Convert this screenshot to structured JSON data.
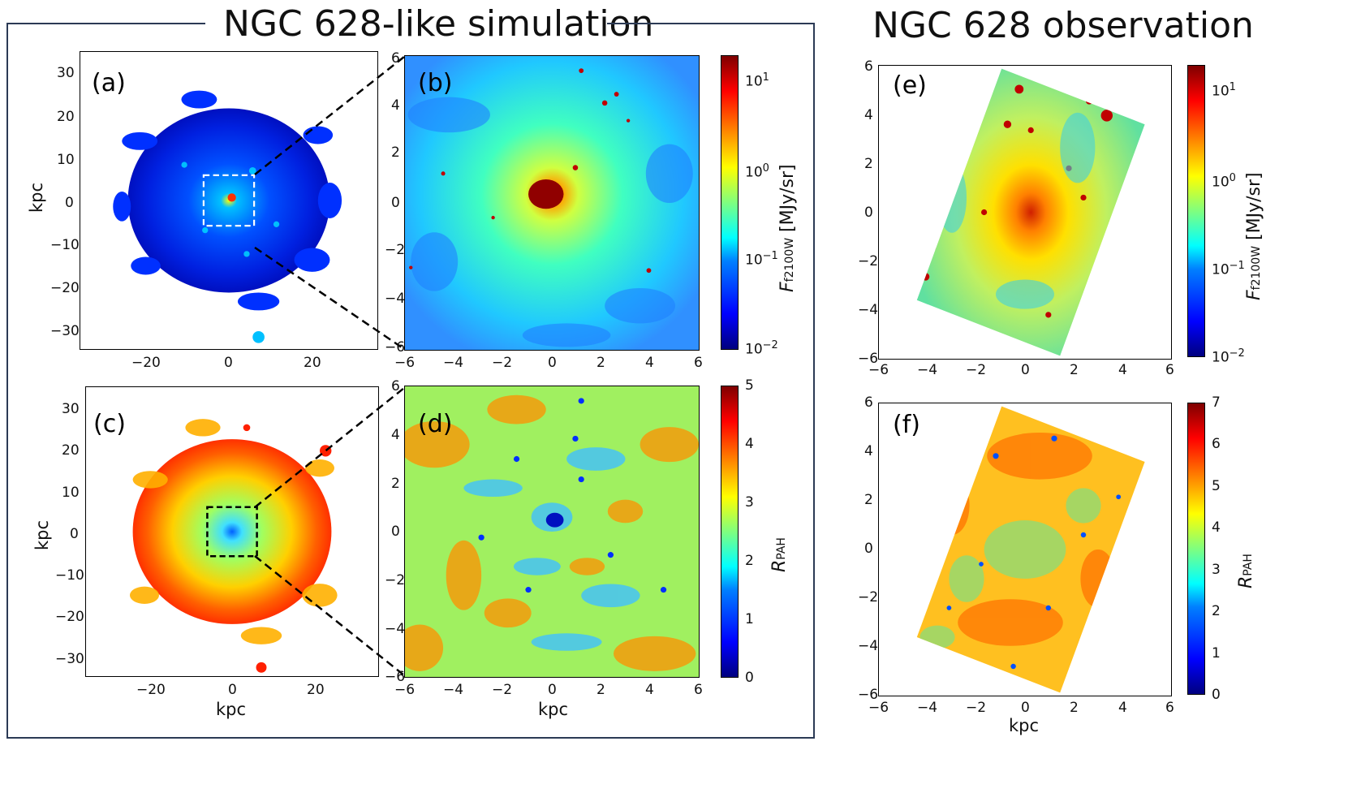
{
  "titles": {
    "simulation": "NGC 628-like simulation",
    "observation": "NGC 628 observation"
  },
  "panels": {
    "a": "(a)",
    "b": "(b)",
    "c": "(c)",
    "d": "(d)",
    "e": "(e)",
    "f": "(f)"
  },
  "axis": {
    "kpc": "kpc",
    "wide_ticks_y": [
      "30",
      "20",
      "10",
      "0",
      "−10",
      "−20",
      "−30"
    ],
    "wide_ticks_x": [
      "−20",
      "0",
      "20"
    ],
    "zoom_ticks": [
      "−6",
      "−4",
      "−2",
      "0",
      "2",
      "4",
      "6"
    ]
  },
  "colorbars": {
    "flux_label_main": "F",
    "flux_label_sub": "f2100W",
    "flux_label_unit": " [MJy/sr]",
    "flux_ticks": [
      {
        "base": "10",
        "exp": "1"
      },
      {
        "base": "10",
        "exp": "0"
      },
      {
        "base": "10",
        "exp": "−1"
      },
      {
        "base": "10",
        "exp": "−2"
      }
    ],
    "rpah_label_main": "R",
    "rpah_label_sub": "PAH",
    "rpah_ticks_sim": [
      "5",
      "4",
      "3",
      "2",
      "1",
      "0"
    ],
    "rpah_ticks_obs": [
      "7",
      "6",
      "5",
      "4",
      "3",
      "2",
      "1",
      "0"
    ]
  },
  "colors": {
    "frame": "#2b3a55",
    "dark_red": "#7f0000",
    "blue": "#0000ff",
    "cyan": "#00ffff",
    "yellow": "#ffff00"
  }
}
